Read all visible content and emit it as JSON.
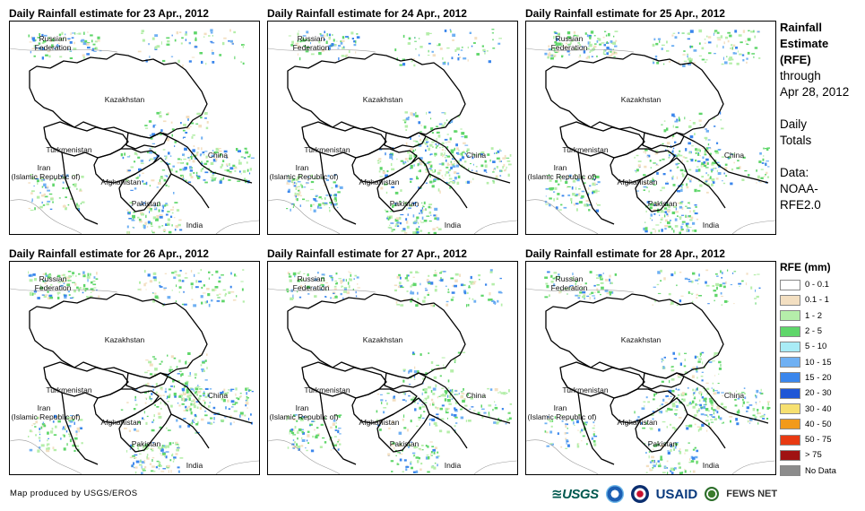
{
  "panels": [
    {
      "title": "Daily Rainfall estimate for 23 Apr., 2012"
    },
    {
      "title": "Daily Rainfall estimate for 24 Apr., 2012"
    },
    {
      "title": "Daily Rainfall estimate for 25 Apr., 2012"
    },
    {
      "title": "Daily Rainfall estimate for 26 Apr., 2012"
    },
    {
      "title": "Daily Rainfall estimate for 27 Apr., 2012"
    },
    {
      "title": "Daily Rainfall estimate for 28 Apr., 2012"
    }
  ],
  "countries": {
    "russia_1": "Russian",
    "russia_2": "Federation",
    "kazakhstan": "Kazakhstan",
    "turkmenistan": "Turkmenistan",
    "iran_1": "Iran",
    "iran_2": "(Islamic Republic of)",
    "afghanistan": "Afghanistan",
    "pakistan": "Pakistan",
    "china": "China",
    "india": "India"
  },
  "side": {
    "title_1": "Rainfall",
    "title_2": "Estimate",
    "title_3": "(RFE)",
    "through": "through",
    "date": "Apr 28, 2012",
    "daily": "Daily",
    "totals": "Totals",
    "data_label": "Data:",
    "source_1": "NOAA-",
    "source_2": "RFE2.0"
  },
  "legend": {
    "title": "RFE (mm)",
    "items": [
      {
        "label": "0 - 0.1",
        "color": "#ffffff"
      },
      {
        "label": "0.1 - 1",
        "color": "#f3dfc1"
      },
      {
        "label": "1 - 2",
        "color": "#b5eeaa"
      },
      {
        "label": "2 - 5",
        "color": "#5fd66a"
      },
      {
        "label": "5 - 10",
        "color": "#a9ecf6"
      },
      {
        "label": "10 - 15",
        "color": "#6fb0f3"
      },
      {
        "label": "15 - 20",
        "color": "#3a86ec"
      },
      {
        "label": "20 - 30",
        "color": "#1f56d6"
      },
      {
        "label": "30 - 40",
        "color": "#f6e070"
      },
      {
        "label": "40 - 50",
        "color": "#f29a1b"
      },
      {
        "label": "50 - 75",
        "color": "#e83a12"
      },
      {
        "label": "> 75",
        "color": "#a01212"
      },
      {
        "label": "No Data",
        "color": "#8c8c8c"
      }
    ]
  },
  "footer": "Map produced by USGS/EROS",
  "logos": {
    "usgs": "≊USGS",
    "usaid": "USAID",
    "fews": "FEWS NET"
  }
}
